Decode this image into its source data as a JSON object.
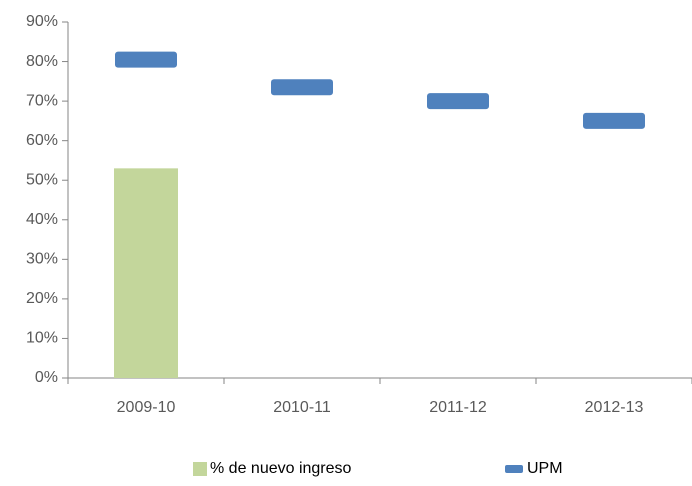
{
  "chart_data": {
    "type": "bar",
    "categories": [
      "2009-10",
      "2010-11",
      "2011-12",
      "2012-13"
    ],
    "series": [
      {
        "name": "% de nuevo ingreso",
        "type": "bar",
        "color": "#c3d69b",
        "values": [
          53,
          null,
          null,
          null
        ]
      },
      {
        "name": "UPM",
        "type": "marker",
        "color": "#4f81bd",
        "values": [
          80.5,
          73.5,
          70,
          65
        ]
      }
    ],
    "ylim": [
      0,
      90
    ],
    "yticks": [
      {
        "value": 0,
        "label": "0%"
      },
      {
        "value": 10,
        "label": "10%"
      },
      {
        "value": 20,
        "label": "20%"
      },
      {
        "value": 30,
        "label": "30%"
      },
      {
        "value": 40,
        "label": "40%"
      },
      {
        "value": 50,
        "label": "50%"
      },
      {
        "value": 60,
        "label": "60%"
      },
      {
        "value": 70,
        "label": "70%"
      },
      {
        "value": 80,
        "label": "80%"
      },
      {
        "value": 90,
        "label": "90%"
      }
    ],
    "grid": false,
    "legend": "bottom"
  }
}
